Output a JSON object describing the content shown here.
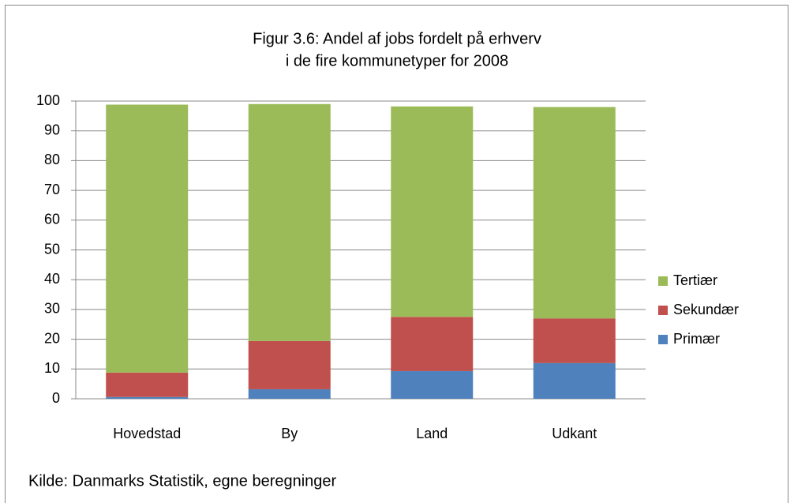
{
  "chart_data": {
    "type": "stacked-bar",
    "title": [
      "Figur 3.6: Andel af jobs fordelt på erhverv",
      "i de fire kommunetyper for 2008"
    ],
    "categories": [
      "Hovedstad",
      "By",
      "Land",
      "Udkant"
    ],
    "series": [
      {
        "name": "Primær",
        "color": "#4f81bd",
        "values": [
          0.6,
          3.2,
          9.3,
          12
        ]
      },
      {
        "name": "Sekundær",
        "color": "#c0504d",
        "values": [
          8.2,
          16.2,
          18.2,
          15
        ]
      },
      {
        "name": "Tertiær",
        "color": "#9bbb59",
        "values": [
          90,
          79.6,
          70.7,
          71
        ]
      }
    ],
    "ylim": [
      0,
      100
    ],
    "yticks": [
      0,
      10,
      20,
      30,
      40,
      50,
      60,
      70,
      80,
      90,
      100
    ],
    "grid": true,
    "legend": "right",
    "source": "Kilde: Danmarks Statistik, egne beregninger"
  }
}
